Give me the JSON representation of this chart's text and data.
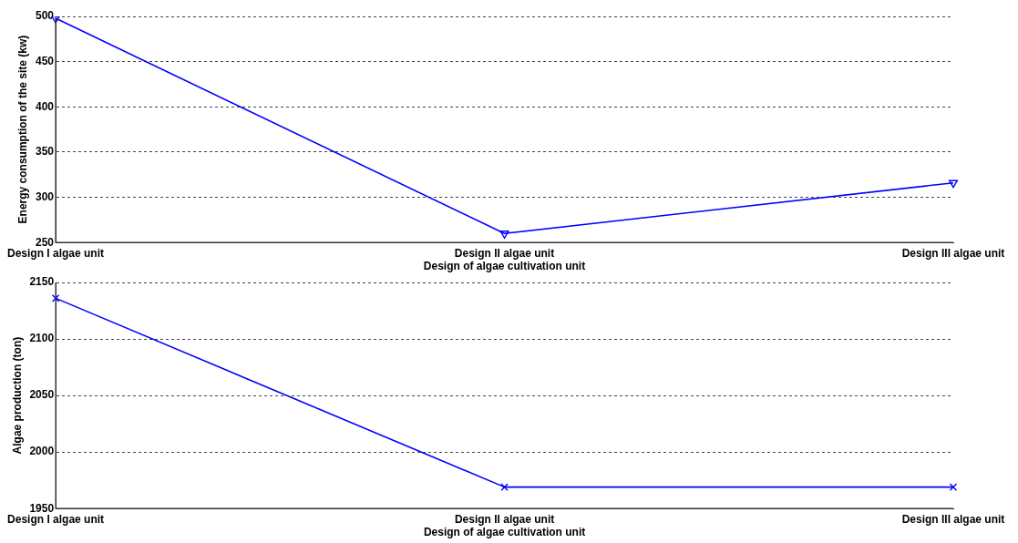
{
  "chart_data": [
    {
      "type": "line",
      "xlabel": "Design of algae cultivation unit",
      "ylabel": "Energy consumption of the site (kw)",
      "categories": [
        "Design I algae unit",
        "Design II algae unit",
        "Design III algae unit"
      ],
      "series": [
        {
          "color": "#0000ff",
          "values": [
            498,
            260,
            316
          ]
        }
      ],
      "ylim": [
        250,
        500
      ],
      "yticks": [
        250,
        300,
        350,
        400,
        450,
        500
      ],
      "grid": "y",
      "marker": "triangle",
      "line_style": "solid",
      "legend": false
    },
    {
      "type": "line",
      "xlabel": "Design of algae cultivation unit",
      "ylabel": "Algae production (ton)",
      "categories": [
        "Design I algae unit",
        "Design II algae unit",
        "Design III algae unit"
      ],
      "series": [
        {
          "color": "#0000ff",
          "values": [
            2136,
            1969,
            1969
          ]
        }
      ],
      "ylim": [
        1950,
        2150
      ],
      "yticks": [
        1950,
        2000,
        2050,
        2100,
        2150
      ],
      "grid": "y",
      "marker": "cross",
      "line_style": "solid",
      "legend": false
    }
  ]
}
